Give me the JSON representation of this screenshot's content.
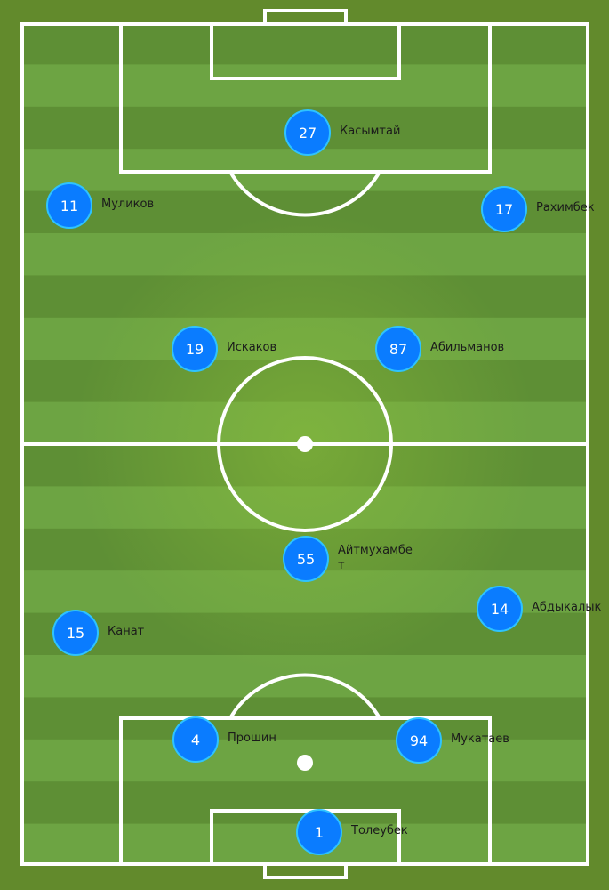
{
  "colors": {
    "background": "#628a2c",
    "stripe_dark": "#5e8f35",
    "stripe_light": "#6da443",
    "center_glow": "#86b83a",
    "lines": "#ffffff",
    "player_fill": "#0a7cff",
    "player_border": "#2ec3ff"
  },
  "players": [
    {
      "number": "27",
      "name": "Касымтай"
    },
    {
      "number": "11",
      "name": "Муликов"
    },
    {
      "number": "17",
      "name": "Рахимбек"
    },
    {
      "number": "19",
      "name": "Искаков"
    },
    {
      "number": "87",
      "name": "Абильманов"
    },
    {
      "number": "55",
      "name": "Айтмухамбет"
    },
    {
      "number": "14",
      "name": "Абдыкалык"
    },
    {
      "number": "15",
      "name": "Канат"
    },
    {
      "number": "4",
      "name": "Прошин"
    },
    {
      "number": "94",
      "name": "Мукатаев"
    },
    {
      "number": "1",
      "name": "Толеубек"
    }
  ]
}
